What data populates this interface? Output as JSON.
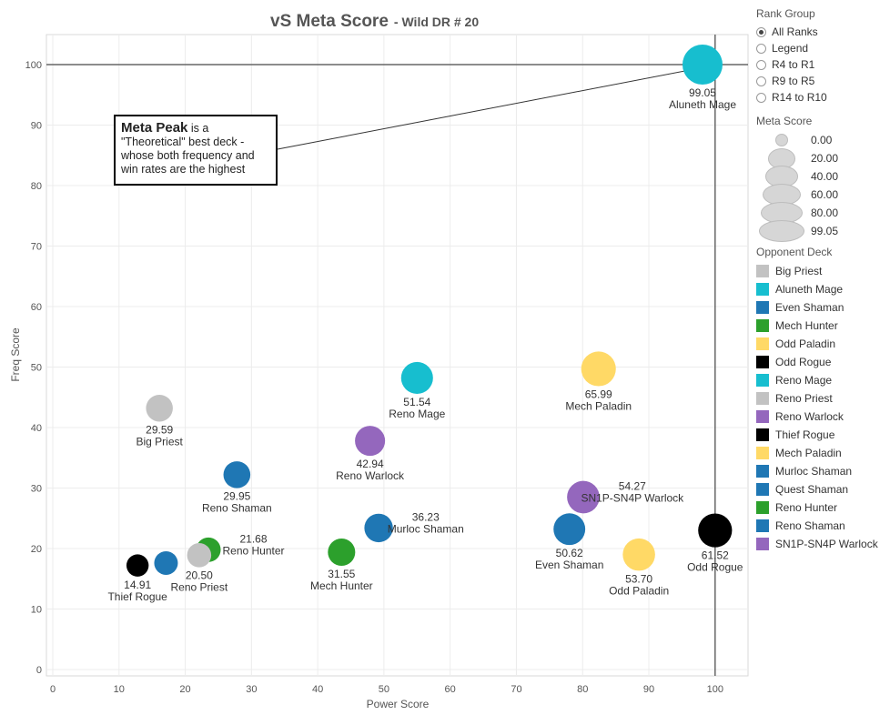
{
  "chart_data": {
    "type": "scatter",
    "title": "vS Meta Score",
    "subtitle": "- Wild DR # 20",
    "xlabel": "Power Score",
    "ylabel": "Freq Score",
    "xlim": [
      0,
      105
    ],
    "ylim": [
      0,
      105
    ],
    "xticks": [
      "0",
      "10",
      "20",
      "30",
      "40",
      "50",
      "60",
      "70",
      "80",
      "90",
      "100"
    ],
    "yticks": [
      "0",
      "10",
      "20",
      "30",
      "40",
      "50",
      "60",
      "70",
      "80",
      "90",
      "100"
    ],
    "grid": true,
    "reference_lines": {
      "x": 100,
      "y": 100
    },
    "points": [
      {
        "deck": "Aluneth Mage",
        "x": 98.1,
        "y": 100,
        "size": 99.05,
        "label_value": "99.05",
        "label_name": "Aluneth Mage"
      },
      {
        "deck": "Big Priest",
        "x": 16.1,
        "y": 43.2,
        "size": 29.59,
        "label_value": "29.59",
        "label_name": "Big Priest"
      },
      {
        "deck": "Reno Mage",
        "x": 55.0,
        "y": 48.2,
        "size": 51.54,
        "label_value": "51.54",
        "label_name": "Reno Mage"
      },
      {
        "deck": "Mech Paladin",
        "x": 82.4,
        "y": 49.7,
        "size": 65.99,
        "label_value": "65.99",
        "label_name": "Mech Paladin"
      },
      {
        "deck": "Reno Warlock",
        "x": 47.9,
        "y": 37.8,
        "size": 42.94,
        "label_value": "42.94",
        "label_name": "Reno Warlock"
      },
      {
        "deck": "Reno Shaman",
        "x": 27.8,
        "y": 32.2,
        "size": 29.95,
        "label_value": "29.95",
        "label_name": "Reno Shaman"
      },
      {
        "deck": "SN1P-SN4P Warlock",
        "x": 80.1,
        "y": 28.5,
        "size": 54.27,
        "label_value": "54.27",
        "label_name": "SN1P-SN4P Warlock"
      },
      {
        "deck": "Murloc Shaman",
        "x": 49.2,
        "y": 23.4,
        "size": 36.23,
        "label_value": "36.23",
        "label_name": "Murloc Shaman"
      },
      {
        "deck": "Even Shaman",
        "x": 78.0,
        "y": 23.2,
        "size": 50.62,
        "label_value": "50.62",
        "label_name": "Even Shaman"
      },
      {
        "deck": "Odd Rogue",
        "x": 100.0,
        "y": 23.0,
        "size": 61.52,
        "label_value": "61.52",
        "label_name": "Odd Rogue"
      },
      {
        "deck": "Reno Hunter",
        "x": 23.5,
        "y": 19.8,
        "size": 21.68,
        "label_value": "21.68",
        "label_name": "Reno Hunter"
      },
      {
        "deck": "Mech Hunter",
        "x": 43.6,
        "y": 19.4,
        "size": 31.55,
        "label_value": "31.55",
        "label_name": "Mech Hunter"
      },
      {
        "deck": "Odd Paladin",
        "x": 88.5,
        "y": 19.0,
        "size": 53.7,
        "label_value": "53.70",
        "label_name": "Odd Paladin"
      },
      {
        "deck": "Reno Priest",
        "x": 22.1,
        "y": 18.9,
        "size": 20.5,
        "label_value": "20.50",
        "label_name": "Reno Priest"
      },
      {
        "deck": "Quest Shaman",
        "x": 17.1,
        "y": 17.6,
        "size": 0,
        "label_value": "",
        "label_name": ""
      },
      {
        "deck": "Thief Rogue",
        "x": 12.8,
        "y": 17.2,
        "size": 14.91,
        "label_value": "14.91",
        "label_name": "Thief Rogue"
      }
    ],
    "annotation": {
      "bold": "Meta Peak",
      "text": " is a \"Theoretical\" best deck - whose both frequency and win rates are the highest",
      "arrow_to": {
        "x": 100,
        "y": 100
      }
    }
  },
  "legend": {
    "rank_group": {
      "title": "Rank Group",
      "options": [
        "All Ranks",
        "Legend",
        "R4 to R1",
        "R9 to R5",
        "R14 to R10"
      ],
      "selected": "All Ranks"
    },
    "meta_score": {
      "title": "Meta Score",
      "values": [
        "0.00",
        "20.00",
        "40.00",
        "60.00",
        "80.00",
        "99.05"
      ]
    },
    "opponent_deck": {
      "title": "Opponent Deck",
      "items": [
        {
          "name": "Big Priest",
          "color": "#c2c2c2"
        },
        {
          "name": "Aluneth Mage",
          "color": "#17becf"
        },
        {
          "name": "Even Shaman",
          "color": "#1f77b4"
        },
        {
          "name": "Mech Hunter",
          "color": "#2ca02c"
        },
        {
          "name": "Odd Paladin",
          "color": "#ffd966"
        },
        {
          "name": "Odd Rogue",
          "color": "#000000"
        },
        {
          "name": "Reno Mage",
          "color": "#17becf"
        },
        {
          "name": "Reno Priest",
          "color": "#c2c2c2"
        },
        {
          "name": "Reno Warlock",
          "color": "#9467bd"
        },
        {
          "name": "Thief Rogue",
          "color": "#000000"
        },
        {
          "name": "Mech Paladin",
          "color": "#ffd966"
        },
        {
          "name": "Murloc Shaman",
          "color": "#1f77b4"
        },
        {
          "name": "Quest Shaman",
          "color": "#1f77b4"
        },
        {
          "name": "Reno Hunter",
          "color": "#2ca02c"
        },
        {
          "name": "Reno Shaman",
          "color": "#1f77b4"
        },
        {
          "name": "SN1P-SN4P Warlock",
          "color": "#9467bd"
        }
      ]
    }
  }
}
